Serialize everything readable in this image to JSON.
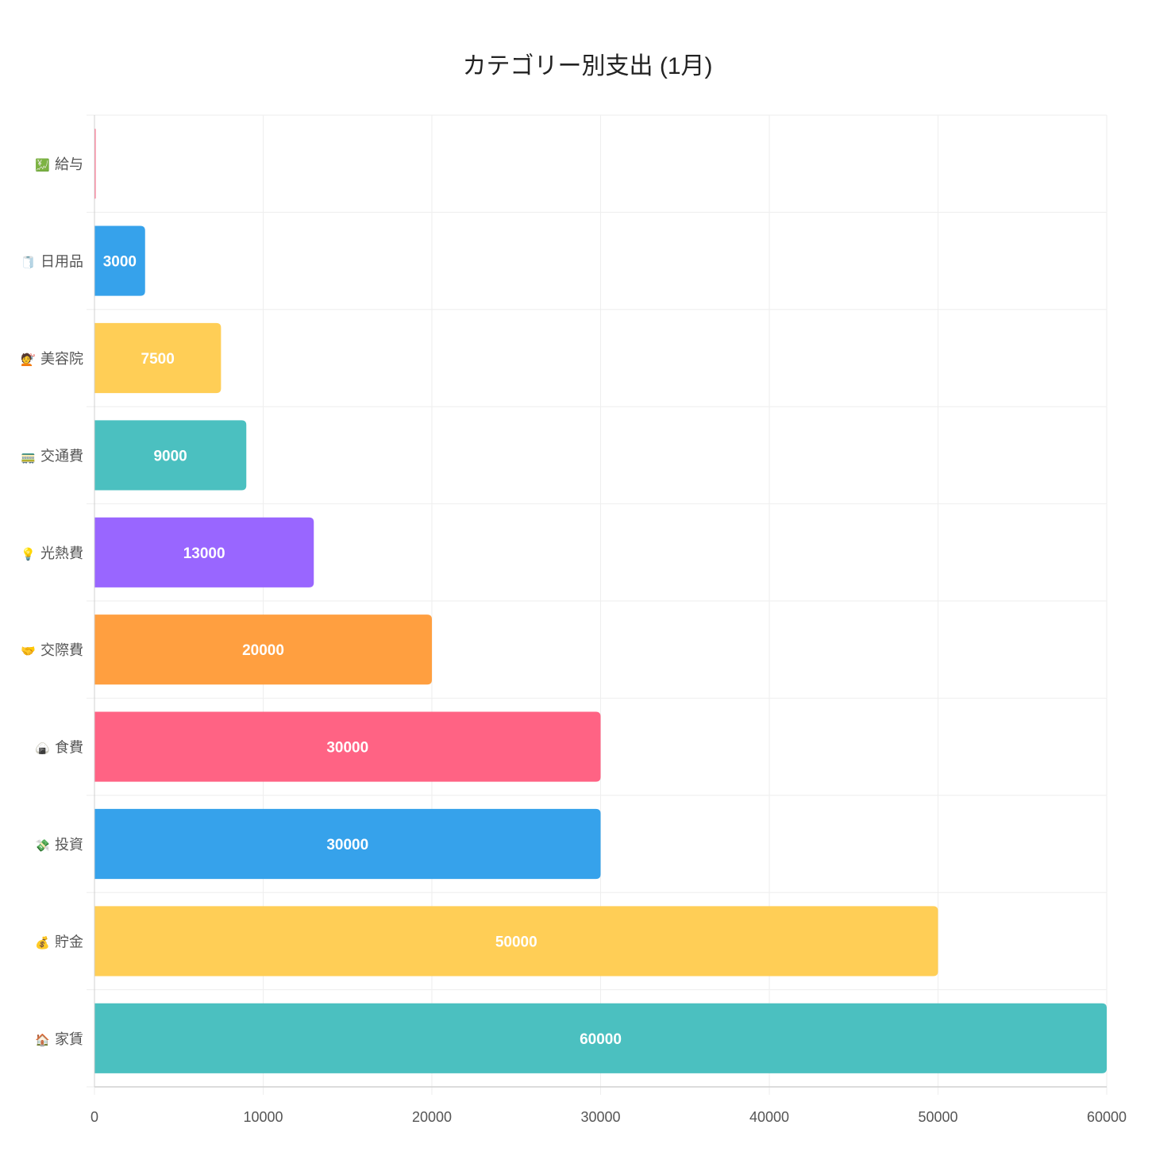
{
  "chart_data": {
    "type": "bar",
    "orientation": "horizontal",
    "title": "カテゴリー別支出 (1月)",
    "xlabel": "",
    "ylabel": "",
    "xlim": [
      0,
      60000
    ],
    "x_ticks": [
      "0",
      "10000",
      "20000",
      "30000",
      "40000",
      "50000",
      "60000"
    ],
    "grid": true,
    "legend": "none",
    "categories": [
      {
        "icon": "💹",
        "icon_name": "money-chart-icon",
        "label": "給与",
        "value": 0,
        "color": "#ff6384"
      },
      {
        "icon": "🧻",
        "icon_name": "tissue-roll-icon",
        "label": "日用品",
        "value": 3000,
        "color": "#36a2eb"
      },
      {
        "icon": "💇",
        "icon_name": "haircut-icon",
        "label": "美容院",
        "value": 7500,
        "color": "#ffce56"
      },
      {
        "icon": "🚃",
        "icon_name": "train-icon",
        "label": "交通費",
        "value": 9000,
        "color": "#4bc0c0"
      },
      {
        "icon": "💡",
        "icon_name": "light-bulb-icon",
        "label": "光熱費",
        "value": 13000,
        "color": "#9966ff"
      },
      {
        "icon": "🤝",
        "icon_name": "handshake-icon",
        "label": "交際費",
        "value": 20000,
        "color": "#ff9f40"
      },
      {
        "icon": "🍙",
        "icon_name": "rice-ball-icon",
        "label": "食費",
        "value": 30000,
        "color": "#ff6384"
      },
      {
        "icon": "💸",
        "icon_name": "money-wings-icon",
        "label": "投資",
        "value": 30000,
        "color": "#36a2eb"
      },
      {
        "icon": "💰",
        "icon_name": "money-bag-icon",
        "label": "貯金",
        "value": 50000,
        "color": "#ffce56"
      },
      {
        "icon": "🏠",
        "icon_name": "house-icon",
        "label": "家賃",
        "value": 60000,
        "color": "#4bc0c0"
      }
    ],
    "bar_labels": [
      "",
      "3000",
      "7500",
      "9000",
      "13000",
      "20000",
      "30000",
      "30000",
      "50000",
      "60000"
    ]
  }
}
